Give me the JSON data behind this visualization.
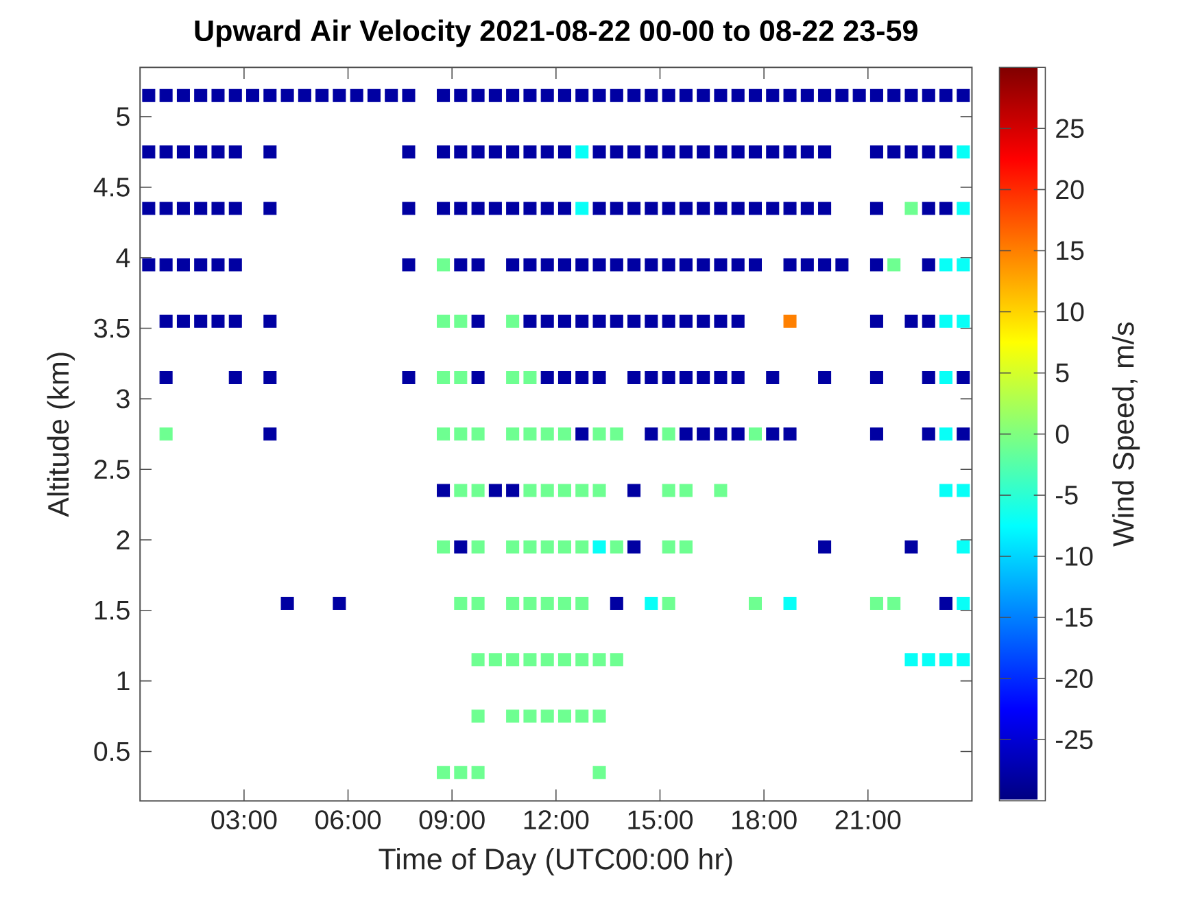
{
  "chart_data": {
    "type": "scatter",
    "title": "Upward Air Velocity 2021-08-22 00-00 to 08-22 23-59",
    "xlabel": "Time of Day (UTC00:00 hr)",
    "ylabel": "Altitude (km)",
    "clabel": "Wind Speed, m/s",
    "marker": "square",
    "x": [
      0.25,
      0.75,
      1.25,
      1.75,
      2.25,
      2.75,
      3.25,
      3.75,
      4.25,
      4.75,
      5.25,
      5.75,
      6.25,
      6.75,
      7.25,
      7.75,
      8.25,
      8.75,
      9.25,
      9.75,
      10.25,
      10.75,
      11.25,
      11.75,
      12.25,
      12.75,
      13.25,
      13.75,
      14.25,
      14.75,
      15.25,
      15.75,
      16.25,
      16.75,
      17.25,
      17.75,
      18.25,
      18.75,
      19.25,
      19.75,
      20.25,
      20.75,
      21.25,
      21.75,
      22.25,
      22.75,
      23.25,
      23.75
    ],
    "series": [
      {
        "values": [
          5.15,
          5.15,
          5.15,
          5.15,
          5.15,
          5.15,
          5.15,
          5.15,
          5.15,
          5.15,
          5.15,
          5.15,
          5.15,
          5.15,
          5.15,
          5.15,
          null,
          5.15,
          5.15,
          5.15,
          5.15,
          5.15,
          5.15,
          5.15,
          5.15,
          5.15,
          5.15,
          5.15,
          5.15,
          5.15,
          5.15,
          5.15,
          5.15,
          5.15,
          5.15,
          5.15,
          5.15,
          5.15,
          5.15,
          5.15,
          5.15,
          5.15,
          5.15,
          5.15,
          5.15,
          5.15,
          5.15,
          5.15
        ],
        "cvalues": [
          -28,
          -28,
          -28,
          -28,
          -28,
          -28,
          -28,
          -28,
          -28,
          -28,
          -28,
          -28,
          -28,
          -28,
          -28,
          -28,
          null,
          -28,
          -28,
          -28,
          -28,
          -28,
          -28,
          -28,
          -28,
          -28,
          -28,
          -28,
          -28,
          -28,
          -28,
          -28,
          -28,
          -28,
          -28,
          -28,
          -28,
          -28,
          -28,
          -28,
          -28,
          -28,
          -28,
          -28,
          -28,
          -28,
          -28,
          -28
        ],
        "colors": [
          "#0000a2",
          "#0000a2",
          "#0000a2",
          "#0000a2",
          "#0000a2",
          "#0000a2",
          "#0000a2",
          "#0000a2",
          "#0000a2",
          "#0000a2",
          "#0000a2",
          "#0000a2",
          "#0000a2",
          "#0000a2",
          "#0000a2",
          "#0000a2",
          null,
          "#0000a2",
          "#0000a2",
          "#0000a2",
          "#0000a2",
          "#0000a2",
          "#0000a2",
          "#0000a2",
          "#0000a2",
          "#0000a2",
          "#0000a2",
          "#0000a2",
          "#0000a2",
          "#0000a2",
          "#0000a2",
          "#0000a2",
          "#0000a2",
          "#0000a2",
          "#0000a2",
          "#0000a2",
          "#0000a2",
          "#0000a2",
          "#0000a2",
          "#0000a2",
          "#0000a2",
          "#0000a2",
          "#0000a2",
          "#0000a2",
          "#0000a2",
          "#0000a2",
          "#0000a2",
          "#0000a2"
        ]
      },
      {
        "values": [
          4.75,
          4.75,
          4.75,
          4.75,
          4.75,
          4.75,
          null,
          4.75,
          null,
          null,
          null,
          null,
          null,
          null,
          null,
          4.75,
          null,
          4.75,
          4.75,
          4.75,
          4.75,
          4.75,
          4.75,
          4.75,
          4.75,
          4.75,
          4.75,
          4.75,
          4.75,
          4.75,
          4.75,
          4.75,
          4.75,
          4.75,
          4.75,
          4.75,
          4.75,
          4.75,
          4.75,
          4.75,
          null,
          null,
          4.75,
          4.75,
          4.75,
          4.75,
          4.75,
          4.75
        ],
        "cvalues": [
          -28,
          -28,
          -28,
          -28,
          -28,
          -28,
          null,
          -28,
          null,
          null,
          null,
          null,
          null,
          null,
          null,
          -28,
          null,
          -28,
          -28,
          -28,
          -28,
          -28,
          -28,
          -28,
          -28,
          -7,
          -28,
          -28,
          -28,
          -28,
          -28,
          -28,
          -28,
          -28,
          -28,
          -28,
          -28,
          -28,
          -28,
          -28,
          null,
          null,
          -28,
          -28,
          -28,
          -28,
          -28,
          -7
        ],
        "colors": [
          "#0000a2",
          "#0000a2",
          "#0000a2",
          "#0000a2",
          "#0000a2",
          "#0000a2",
          null,
          "#0000a2",
          null,
          null,
          null,
          null,
          null,
          null,
          null,
          "#0000a2",
          null,
          "#0000a2",
          "#0000a2",
          "#0000a2",
          "#0000a2",
          "#0000a2",
          "#0000a2",
          "#0000a2",
          "#0000a2",
          "#08fff7",
          "#0000a2",
          "#0000a2",
          "#0000a2",
          "#0000a2",
          "#0000a2",
          "#0000a2",
          "#0000a2",
          "#0000a2",
          "#0000a2",
          "#0000a2",
          "#0000a2",
          "#0000a2",
          "#0000a2",
          "#0000a2",
          null,
          null,
          "#0000a2",
          "#0000a2",
          "#0000a2",
          "#0000a2",
          "#0000a2",
          "#08fff7"
        ]
      },
      {
        "values": [
          4.35,
          4.35,
          4.35,
          4.35,
          4.35,
          4.35,
          null,
          4.35,
          null,
          null,
          null,
          null,
          null,
          null,
          null,
          4.35,
          null,
          4.35,
          4.35,
          4.35,
          4.35,
          4.35,
          4.35,
          4.35,
          4.35,
          4.35,
          4.35,
          4.35,
          4.35,
          4.35,
          4.35,
          4.35,
          4.35,
          4.35,
          4.35,
          4.35,
          4.35,
          4.35,
          4.35,
          4.35,
          null,
          null,
          4.35,
          null,
          4.35,
          4.35,
          4.35,
          4.35
        ],
        "cvalues": [
          -28,
          -28,
          -28,
          -28,
          -28,
          -28,
          null,
          -28,
          null,
          null,
          null,
          null,
          null,
          null,
          null,
          -28,
          null,
          -28,
          -28,
          -28,
          -28,
          -28,
          -28,
          -28,
          -28,
          -7,
          -28,
          -28,
          -28,
          -28,
          -28,
          -28,
          -28,
          -28,
          -28,
          -28,
          -28,
          -28,
          -28,
          -28,
          null,
          null,
          -28,
          null,
          -1,
          -28,
          -28,
          -7
        ],
        "colors": [
          "#0000a2",
          "#0000a2",
          "#0000a2",
          "#0000a2",
          "#0000a2",
          "#0000a2",
          null,
          "#0000a2",
          null,
          null,
          null,
          null,
          null,
          null,
          null,
          "#0000a2",
          null,
          "#0000a2",
          "#0000a2",
          "#0000a2",
          "#0000a2",
          "#0000a2",
          "#0000a2",
          "#0000a2",
          "#0000a2",
          "#08fff7",
          "#0000a2",
          "#0000a2",
          "#0000a2",
          "#0000a2",
          "#0000a2",
          "#0000a2",
          "#0000a2",
          "#0000a2",
          "#0000a2",
          "#0000a2",
          "#0000a2",
          "#0000a2",
          "#0000a2",
          "#0000a2",
          null,
          null,
          "#0000a2",
          null,
          "#6eff91",
          "#0000a2",
          "#0000a2",
          "#08fff7"
        ]
      },
      {
        "values": [
          3.95,
          3.95,
          3.95,
          3.95,
          3.95,
          3.95,
          null,
          null,
          null,
          null,
          null,
          null,
          null,
          null,
          null,
          3.95,
          null,
          3.95,
          3.95,
          3.95,
          null,
          3.95,
          3.95,
          3.95,
          3.95,
          3.95,
          3.95,
          3.95,
          3.95,
          3.95,
          3.95,
          3.95,
          3.95,
          3.95,
          3.95,
          3.95,
          null,
          3.95,
          3.95,
          3.95,
          3.95,
          null,
          3.95,
          3.95,
          null,
          3.95,
          3.95,
          3.95
        ],
        "cvalues": [
          -28,
          -28,
          -28,
          -28,
          -28,
          -28,
          null,
          null,
          null,
          null,
          null,
          null,
          null,
          null,
          null,
          -28,
          null,
          -1,
          -28,
          -28,
          null,
          -28,
          -28,
          -28,
          -28,
          -28,
          -28,
          -28,
          -28,
          -28,
          -28,
          -28,
          -28,
          -28,
          -28,
          -28,
          null,
          -28,
          -28,
          -28,
          -28,
          null,
          -28,
          -1,
          null,
          -28,
          -7,
          -7
        ],
        "colors": [
          "#0000a2",
          "#0000a2",
          "#0000a2",
          "#0000a2",
          "#0000a2",
          "#0000a2",
          null,
          null,
          null,
          null,
          null,
          null,
          null,
          null,
          null,
          "#0000a2",
          null,
          "#6eff91",
          "#0000a2",
          "#0000a2",
          null,
          "#0000a2",
          "#0000a2",
          "#0000a2",
          "#0000a2",
          "#0000a2",
          "#0000a2",
          "#0000a2",
          "#0000a2",
          "#0000a2",
          "#0000a2",
          "#0000a2",
          "#0000a2",
          "#0000a2",
          "#0000a2",
          "#0000a2",
          null,
          "#0000a2",
          "#0000a2",
          "#0000a2",
          "#0000a2",
          null,
          "#0000a2",
          "#6eff91",
          null,
          "#0000a2",
          "#08fff7",
          "#08fff7"
        ]
      },
      {
        "values": [
          null,
          3.55,
          3.55,
          3.55,
          3.55,
          3.55,
          null,
          3.55,
          null,
          null,
          null,
          null,
          null,
          null,
          null,
          null,
          null,
          3.55,
          3.55,
          3.55,
          null,
          3.55,
          3.55,
          3.55,
          3.55,
          3.55,
          3.55,
          3.55,
          3.55,
          3.55,
          3.55,
          3.55,
          3.55,
          3.55,
          3.55,
          null,
          null,
          3.55,
          null,
          null,
          null,
          null,
          3.55,
          null,
          3.55,
          3.55,
          3.55,
          3.55
        ],
        "cvalues": [
          null,
          -28,
          -28,
          -28,
          -28,
          -28,
          null,
          -28,
          null,
          null,
          null,
          null,
          null,
          null,
          null,
          null,
          null,
          -1,
          -1,
          -28,
          null,
          -1,
          -28,
          -28,
          -28,
          -28,
          -28,
          -28,
          -28,
          -28,
          -28,
          -28,
          -28,
          -28,
          -28,
          null,
          null,
          15,
          null,
          null,
          null,
          null,
          -28,
          null,
          -28,
          -28,
          -7,
          -7
        ],
        "colors": [
          null,
          "#0000a2",
          "#0000a2",
          "#0000a2",
          "#0000a2",
          "#0000a2",
          null,
          "#0000a2",
          null,
          null,
          null,
          null,
          null,
          null,
          null,
          null,
          null,
          "#6eff91",
          "#6eff91",
          "#0000a2",
          null,
          "#6eff91",
          "#0000a2",
          "#0000a2",
          "#0000a2",
          "#0000a2",
          "#0000a2",
          "#0000a2",
          "#0000a2",
          "#0000a2",
          "#0000a2",
          "#0000a2",
          "#0000a2",
          "#0000a2",
          "#0000a2",
          null,
          null,
          "#ff8000",
          null,
          null,
          null,
          null,
          "#0000a2",
          null,
          "#0000a2",
          "#0000a2",
          "#08fff7",
          "#08fff7"
        ]
      },
      {
        "values": [
          null,
          3.15,
          null,
          null,
          null,
          3.15,
          null,
          3.15,
          null,
          null,
          null,
          null,
          null,
          null,
          null,
          3.15,
          null,
          3.15,
          3.15,
          3.15,
          null,
          3.15,
          3.15,
          3.15,
          3.15,
          3.15,
          3.15,
          null,
          3.15,
          3.15,
          3.15,
          3.15,
          3.15,
          3.15,
          3.15,
          null,
          3.15,
          null,
          null,
          3.15,
          null,
          null,
          3.15,
          null,
          null,
          3.15,
          3.15,
          3.15
        ],
        "cvalues": [
          null,
          -28,
          null,
          null,
          null,
          -28,
          null,
          -28,
          null,
          null,
          null,
          null,
          null,
          null,
          null,
          -28,
          null,
          -1,
          -1,
          -28,
          null,
          -1,
          -1,
          -28,
          -28,
          -28,
          -28,
          null,
          -28,
          -28,
          -28,
          -28,
          -28,
          -28,
          -28,
          null,
          -28,
          null,
          null,
          -28,
          null,
          null,
          -28,
          null,
          null,
          -28,
          -7,
          -28
        ],
        "colors": [
          null,
          "#0000a2",
          null,
          null,
          null,
          "#0000a2",
          null,
          "#0000a2",
          null,
          null,
          null,
          null,
          null,
          null,
          null,
          "#0000a2",
          null,
          "#6eff91",
          "#6eff91",
          "#0000a2",
          null,
          "#6eff91",
          "#6eff91",
          "#0000a2",
          "#0000a2",
          "#0000a2",
          "#0000a2",
          null,
          "#0000a2",
          "#0000a2",
          "#0000a2",
          "#0000a2",
          "#0000a2",
          "#0000a2",
          "#0000a2",
          null,
          "#0000a2",
          null,
          null,
          "#0000a2",
          null,
          null,
          "#0000a2",
          null,
          null,
          "#0000a2",
          "#08fff7",
          "#0000a2"
        ]
      },
      {
        "values": [
          null,
          2.75,
          null,
          null,
          null,
          null,
          null,
          2.75,
          null,
          null,
          null,
          null,
          null,
          null,
          null,
          null,
          null,
          2.75,
          2.75,
          2.75,
          null,
          2.75,
          2.75,
          2.75,
          2.75,
          2.75,
          2.75,
          2.75,
          null,
          2.75,
          2.75,
          2.75,
          2.75,
          2.75,
          2.75,
          2.75,
          2.75,
          2.75,
          null,
          null,
          null,
          null,
          2.75,
          null,
          null,
          2.75,
          2.75,
          2.75
        ],
        "cvalues": [
          null,
          -1,
          null,
          null,
          null,
          null,
          null,
          -28,
          null,
          null,
          null,
          null,
          null,
          null,
          null,
          null,
          null,
          -1,
          -1,
          -1,
          null,
          -1,
          -1,
          -1,
          -1,
          -28,
          -1,
          -1,
          null,
          -28,
          -1,
          -28,
          -28,
          -28,
          -28,
          -1,
          -28,
          -28,
          null,
          null,
          null,
          null,
          -28,
          null,
          null,
          -28,
          -7,
          -28
        ],
        "colors": [
          null,
          "#6eff91",
          null,
          null,
          null,
          null,
          null,
          "#0000a2",
          null,
          null,
          null,
          null,
          null,
          null,
          null,
          null,
          null,
          "#6eff91",
          "#6eff91",
          "#6eff91",
          null,
          "#6eff91",
          "#6eff91",
          "#6eff91",
          "#6eff91",
          "#0000a2",
          "#6eff91",
          "#6eff91",
          null,
          "#0000a2",
          "#6eff91",
          "#0000a2",
          "#0000a2",
          "#0000a2",
          "#0000a2",
          "#6eff91",
          "#0000a2",
          "#0000a2",
          null,
          null,
          null,
          null,
          "#0000a2",
          null,
          null,
          "#0000a2",
          "#08fff7",
          "#0000a2"
        ]
      },
      {
        "values": [
          null,
          null,
          null,
          null,
          null,
          null,
          null,
          null,
          null,
          null,
          null,
          null,
          null,
          null,
          null,
          null,
          null,
          2.35,
          2.35,
          2.35,
          2.35,
          2.35,
          2.35,
          2.35,
          2.35,
          2.35,
          2.35,
          null,
          2.35,
          null,
          2.35,
          2.35,
          null,
          2.35,
          null,
          null,
          null,
          null,
          null,
          null,
          null,
          null,
          null,
          null,
          null,
          null,
          2.35,
          2.35
        ],
        "cvalues": [
          null,
          null,
          null,
          null,
          null,
          null,
          null,
          null,
          null,
          null,
          null,
          null,
          null,
          null,
          null,
          null,
          null,
          -28,
          -1,
          -1,
          -28,
          -28,
          -1,
          -1,
          -1,
          -1,
          -1,
          null,
          -28,
          null,
          -1,
          -1,
          null,
          -1,
          null,
          null,
          null,
          null,
          null,
          null,
          null,
          null,
          null,
          null,
          null,
          null,
          -7,
          -7
        ],
        "colors": [
          null,
          null,
          null,
          null,
          null,
          null,
          null,
          null,
          null,
          null,
          null,
          null,
          null,
          null,
          null,
          null,
          null,
          "#0000a2",
          "#6eff91",
          "#6eff91",
          "#0000a2",
          "#0000a2",
          "#6eff91",
          "#6eff91",
          "#6eff91",
          "#6eff91",
          "#6eff91",
          null,
          "#0000a2",
          null,
          "#6eff91",
          "#6eff91",
          null,
          "#6eff91",
          null,
          null,
          null,
          null,
          null,
          null,
          null,
          null,
          null,
          null,
          null,
          null,
          "#08fff7",
          "#08fff7"
        ]
      },
      {
        "values": [
          null,
          null,
          null,
          null,
          null,
          null,
          null,
          null,
          null,
          null,
          null,
          null,
          null,
          null,
          null,
          null,
          null,
          1.95,
          1.95,
          1.95,
          null,
          1.95,
          1.95,
          1.95,
          1.95,
          1.95,
          1.95,
          1.95,
          1.95,
          null,
          1.95,
          1.95,
          null,
          null,
          null,
          null,
          null,
          null,
          null,
          1.95,
          null,
          null,
          null,
          null,
          1.95,
          null,
          null,
          1.95
        ],
        "cvalues": [
          null,
          null,
          null,
          null,
          null,
          null,
          null,
          null,
          null,
          null,
          null,
          null,
          null,
          null,
          null,
          null,
          null,
          -1,
          -28,
          -1,
          null,
          -1,
          -1,
          -1,
          -1,
          -1,
          -7,
          -1,
          -28,
          null,
          -1,
          -1,
          null,
          null,
          null,
          null,
          null,
          null,
          null,
          -28,
          null,
          null,
          null,
          null,
          -28,
          null,
          null,
          -7
        ],
        "colors": [
          null,
          null,
          null,
          null,
          null,
          null,
          null,
          null,
          null,
          null,
          null,
          null,
          null,
          null,
          null,
          null,
          null,
          "#6eff91",
          "#0000a2",
          "#6eff91",
          null,
          "#6eff91",
          "#6eff91",
          "#6eff91",
          "#6eff91",
          "#6eff91",
          "#08fff7",
          "#6eff91",
          "#0000a2",
          null,
          "#6eff91",
          "#6eff91",
          null,
          null,
          null,
          null,
          null,
          null,
          null,
          "#0000a2",
          null,
          null,
          null,
          null,
          "#0000a2",
          null,
          null,
          "#08fff7"
        ]
      },
      {
        "values": [
          null,
          null,
          null,
          null,
          null,
          null,
          null,
          null,
          1.55,
          null,
          null,
          1.55,
          null,
          null,
          null,
          null,
          null,
          null,
          1.55,
          1.55,
          null,
          1.55,
          1.55,
          1.55,
          1.55,
          1.55,
          null,
          1.55,
          null,
          1.55,
          1.55,
          null,
          null,
          null,
          null,
          1.55,
          null,
          1.55,
          null,
          null,
          null,
          null,
          1.55,
          1.55,
          null,
          null,
          1.55,
          1.55
        ],
        "cvalues": [
          null,
          null,
          null,
          null,
          null,
          null,
          null,
          null,
          -28,
          null,
          null,
          -28,
          null,
          null,
          null,
          null,
          null,
          null,
          -1,
          -1,
          null,
          -1,
          -1,
          -1,
          -1,
          -1,
          null,
          -28,
          null,
          -7,
          -1,
          null,
          null,
          null,
          null,
          -1,
          null,
          -7,
          null,
          null,
          null,
          null,
          -1,
          -1,
          null,
          null,
          -28,
          -7
        ],
        "colors": [
          null,
          null,
          null,
          null,
          null,
          null,
          null,
          null,
          "#0000a2",
          null,
          null,
          "#0000a2",
          null,
          null,
          null,
          null,
          null,
          null,
          "#6eff91",
          "#6eff91",
          null,
          "#6eff91",
          "#6eff91",
          "#6eff91",
          "#6eff91",
          "#6eff91",
          null,
          "#0000a2",
          null,
          "#08fff7",
          "#6eff91",
          null,
          null,
          null,
          null,
          "#6eff91",
          null,
          "#08fff7",
          null,
          null,
          null,
          null,
          "#6eff91",
          "#6eff91",
          null,
          null,
          "#0000a2",
          "#08fff7"
        ]
      },
      {
        "values": [
          null,
          null,
          null,
          null,
          null,
          null,
          null,
          null,
          null,
          null,
          null,
          null,
          null,
          null,
          null,
          null,
          null,
          null,
          null,
          1.15,
          1.15,
          1.15,
          1.15,
          1.15,
          1.15,
          1.15,
          1.15,
          1.15,
          null,
          null,
          null,
          null,
          null,
          null,
          null,
          null,
          null,
          null,
          null,
          null,
          null,
          null,
          null,
          null,
          1.15,
          1.15,
          1.15,
          1.15
        ],
        "cvalues": [
          null,
          null,
          null,
          null,
          null,
          null,
          null,
          null,
          null,
          null,
          null,
          null,
          null,
          null,
          null,
          null,
          null,
          null,
          null,
          -1,
          -1,
          -1,
          -1,
          -1,
          -1,
          -1,
          -1,
          -1,
          null,
          null,
          null,
          null,
          null,
          null,
          null,
          null,
          null,
          null,
          null,
          null,
          null,
          null,
          null,
          null,
          -7,
          -7,
          -7,
          -7
        ],
        "colors": [
          null,
          null,
          null,
          null,
          null,
          null,
          null,
          null,
          null,
          null,
          null,
          null,
          null,
          null,
          null,
          null,
          null,
          null,
          null,
          "#6eff91",
          "#6eff91",
          "#6eff91",
          "#6eff91",
          "#6eff91",
          "#6eff91",
          "#6eff91",
          "#6eff91",
          "#6eff91",
          null,
          null,
          null,
          null,
          null,
          null,
          null,
          null,
          null,
          null,
          null,
          null,
          null,
          null,
          null,
          null,
          "#08fff7",
          "#08fff7",
          "#08fff7",
          "#08fff7"
        ]
      },
      {
        "values": [
          null,
          null,
          null,
          null,
          null,
          null,
          null,
          null,
          null,
          null,
          null,
          null,
          null,
          null,
          null,
          null,
          null,
          null,
          null,
          0.75,
          null,
          0.75,
          0.75,
          0.75,
          0.75,
          0.75,
          0.75,
          null,
          null,
          null,
          null,
          null,
          null,
          null,
          null,
          null,
          null,
          null,
          null,
          null,
          null,
          null,
          null,
          null,
          null,
          null,
          null,
          null
        ],
        "cvalues": [
          null,
          null,
          null,
          null,
          null,
          null,
          null,
          null,
          null,
          null,
          null,
          null,
          null,
          null,
          null,
          null,
          null,
          null,
          null,
          -1,
          null,
          -1,
          -1,
          -1,
          -1,
          -1,
          -1,
          null,
          null,
          null,
          null,
          null,
          null,
          null,
          null,
          null,
          null,
          null,
          null,
          null,
          null,
          null,
          null,
          null,
          null,
          null,
          null,
          null
        ],
        "colors": [
          null,
          null,
          null,
          null,
          null,
          null,
          null,
          null,
          null,
          null,
          null,
          null,
          null,
          null,
          null,
          null,
          null,
          null,
          null,
          "#6eff91",
          null,
          "#6eff91",
          "#6eff91",
          "#6eff91",
          "#6eff91",
          "#6eff91",
          "#6eff91",
          null,
          null,
          null,
          null,
          null,
          null,
          null,
          null,
          null,
          null,
          null,
          null,
          null,
          null,
          null,
          null,
          null,
          null,
          null,
          null,
          null
        ]
      },
      {
        "values": [
          null,
          null,
          null,
          null,
          null,
          null,
          null,
          null,
          null,
          null,
          null,
          null,
          null,
          null,
          null,
          null,
          null,
          0.35,
          0.35,
          0.35,
          null,
          null,
          null,
          null,
          null,
          null,
          0.35,
          null,
          null,
          null,
          null,
          null,
          null,
          null,
          null,
          null,
          null,
          null,
          null,
          null,
          null,
          null,
          null,
          null,
          null,
          null,
          null,
          null
        ],
        "cvalues": [
          null,
          null,
          null,
          null,
          null,
          null,
          null,
          null,
          null,
          null,
          null,
          null,
          null,
          null,
          null,
          null,
          null,
          -1,
          -1,
          -1,
          null,
          null,
          null,
          null,
          null,
          null,
          -1,
          null,
          null,
          null,
          null,
          null,
          null,
          null,
          null,
          null,
          null,
          null,
          null,
          null,
          null,
          null,
          null,
          null,
          null,
          null,
          null,
          null
        ],
        "colors": [
          null,
          null,
          null,
          null,
          null,
          null,
          null,
          null,
          null,
          null,
          null,
          null,
          null,
          null,
          null,
          null,
          null,
          "#6eff91",
          "#6eff91",
          "#6eff91",
          null,
          null,
          null,
          null,
          null,
          null,
          "#6eff91",
          null,
          null,
          null,
          null,
          null,
          null,
          null,
          null,
          null,
          null,
          null,
          null,
          null,
          null,
          null,
          null,
          null,
          null,
          null,
          null,
          null
        ]
      }
    ],
    "xlim": [
      0,
      24
    ],
    "ylim": [
      0.15,
      5.35
    ],
    "xticks": [
      {
        "value": 3,
        "label": "03:00"
      },
      {
        "value": 6,
        "label": "06:00"
      },
      {
        "value": 9,
        "label": "09:00"
      },
      {
        "value": 12,
        "label": "12:00"
      },
      {
        "value": 15,
        "label": "15:00"
      },
      {
        "value": 18,
        "label": "18:00"
      },
      {
        "value": 21,
        "label": "21:00"
      }
    ],
    "yticks": [
      0.5,
      1,
      1.5,
      2,
      2.5,
      3,
      3.5,
      4,
      4.5,
      5
    ],
    "clim": [
      -30,
      30
    ],
    "cticks": [
      -25,
      -20,
      -15,
      -10,
      -5,
      0,
      5,
      10,
      15,
      20,
      25
    ]
  }
}
